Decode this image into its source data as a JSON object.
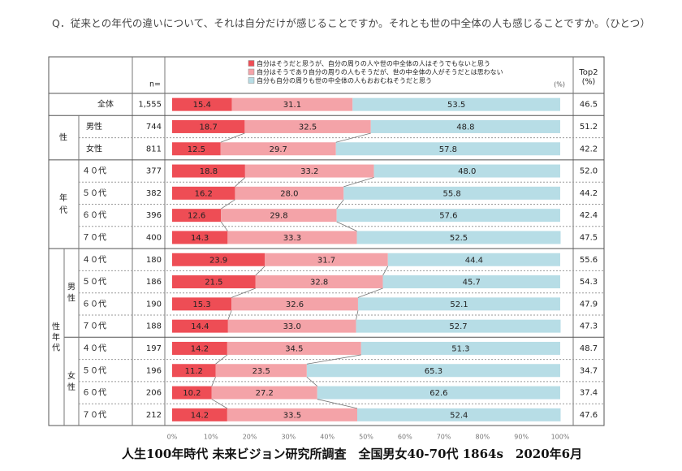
{
  "question": "Q．従来との年代の違いについて、それは自分だけが感じることですか。それとも世の中全体の人も感じることですか。（ひとつ）",
  "footer": "人生100年時代 未来ビジョン研究所調査　全国男女40-70代 1864s　2020年6月",
  "header": {
    "n_label": "n=",
    "top2_label": "Top2",
    "top2_unit": "(%)",
    "pct_unit": "(%)"
  },
  "groups": {
    "sex": "性",
    "age": "年代",
    "sexage": "性年代",
    "male": "男性",
    "female": "女性"
  },
  "colors": {
    "series1": "#ee4d55",
    "series2": "#f4a3a8",
    "series3": "#b7dde6"
  },
  "chart_data": {
    "type": "bar",
    "stacked": true,
    "orientation": "horizontal",
    "legend_position": "top",
    "xlim": [
      0,
      100
    ],
    "x_ticks": [
      "0%",
      "10%",
      "20%",
      "30%",
      "40%",
      "50%",
      "60%",
      "70%",
      "80%",
      "90%",
      "100%"
    ],
    "series": [
      {
        "name": "自分はそうだと思うが、自分の周りの人や世の中全体の人はそうでもないと思う",
        "values": [
          15.4,
          18.7,
          12.5,
          18.8,
          16.2,
          12.6,
          14.3,
          23.9,
          21.5,
          15.3,
          14.4,
          14.2,
          11.2,
          10.2,
          14.2
        ]
      },
      {
        "name": "自分はそうであり自分の周りの人もそうだが、世の中全体の人がそうだとは思わない",
        "values": [
          31.1,
          32.5,
          29.7,
          33.2,
          28.0,
          29.8,
          33.3,
          31.7,
          32.8,
          32.6,
          33.0,
          34.5,
          23.5,
          27.2,
          33.5
        ]
      },
      {
        "name": "自分も自分の周りも世の中全体の人もおおむねそうだと思う",
        "values": [
          53.5,
          48.8,
          57.8,
          48.0,
          55.8,
          57.6,
          52.5,
          44.4,
          45.7,
          52.1,
          52.7,
          51.3,
          65.3,
          62.6,
          52.4
        ]
      }
    ],
    "categories": [
      "全体",
      "男性",
      "女性",
      "４０代",
      "５０代",
      "６０代",
      "７０代",
      "４０代",
      "５０代",
      "６０代",
      "７０代",
      "４０代",
      "５０代",
      "６０代",
      "７０代"
    ],
    "n": [
      "1,555",
      "744",
      "811",
      "377",
      "382",
      "396",
      "400",
      "180",
      "186",
      "190",
      "188",
      "197",
      "196",
      "206",
      "212"
    ],
    "top2": [
      "46.5",
      "51.2",
      "42.2",
      "52.0",
      "44.2",
      "42.4",
      "47.5",
      "55.6",
      "54.3",
      "47.9",
      "47.3",
      "48.7",
      "34.7",
      "37.4",
      "47.6"
    ]
  }
}
